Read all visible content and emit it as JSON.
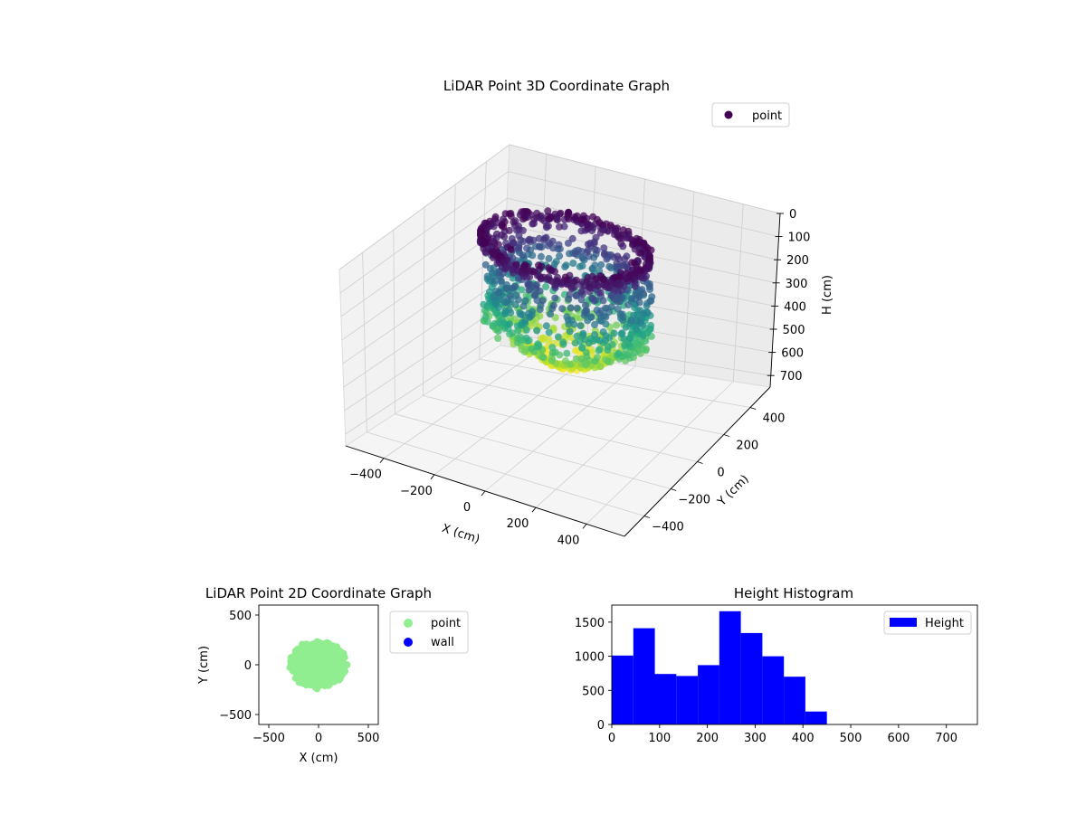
{
  "chart_data": [
    {
      "type": "scatter3d",
      "title": "LiDAR Point 3D Coordinate Graph",
      "xlabel": "X (cm)",
      "ylabel": "Y (cm)",
      "zlabel": "H (cm)",
      "xticks": [
        "−400",
        "−200",
        "0",
        "200",
        "400"
      ],
      "yticks": [
        "−400",
        "−200",
        "0",
        "200",
        "400"
      ],
      "zticks": [
        "0",
        "100",
        "200",
        "300",
        "400",
        "500",
        "600",
        "700"
      ],
      "xlim": [
        -550,
        550
      ],
      "ylim": [
        -550,
        550
      ],
      "zlim": [
        0,
        750
      ],
      "zinverted": true,
      "grid": true,
      "legend": {
        "entries": [
          "point"
        ],
        "placement": "top-right"
      },
      "colormap": "viridis",
      "point_color": "#440154",
      "summary": {
        "x_range": [
          -330,
          320
        ],
        "y_range": [
          -260,
          270
        ],
        "h_range": [
          0,
          450
        ]
      }
    },
    {
      "type": "scatter",
      "title": "LiDAR Point 2D Coordinate Graph",
      "xlabel": "X (cm)",
      "ylabel": "Y (cm)",
      "xticks": [
        "−500",
        "0",
        "500"
      ],
      "yticks": [
        "−500",
        "0",
        "500"
      ],
      "xlim": [
        -600,
        600
      ],
      "ylim": [
        -600,
        600
      ],
      "legend": {
        "entries": [
          "point",
          "wall"
        ],
        "placement": "outside-right"
      },
      "series": [
        {
          "name": "point",
          "color": "#90ee90",
          "cluster": {
            "center": [
              0,
              0
            ],
            "radius_x": 290,
            "radius_y": 240
          },
          "x_range": [
            -330,
            320
          ],
          "y_range": [
            -260,
            270
          ]
        },
        {
          "name": "wall",
          "color": "#0000ff",
          "values": []
        }
      ]
    },
    {
      "type": "bar",
      "title": "Height Histogram",
      "xticks": [
        "0",
        "100",
        "200",
        "300",
        "400",
        "500",
        "600",
        "700"
      ],
      "yticks": [
        "0",
        "500",
        "1000",
        "1500"
      ],
      "xlim": [
        0,
        765
      ],
      "ylim": [
        0,
        1750
      ],
      "bin_width": 45,
      "bins": [
        0,
        45,
        90,
        135,
        180,
        225,
        270,
        315,
        360,
        405
      ],
      "values": [
        1010,
        1410,
        740,
        710,
        870,
        1660,
        1340,
        1000,
        700,
        190
      ],
      "color": "#0000ff",
      "legend": {
        "entries": [
          "Height"
        ],
        "placement": "upper-right"
      }
    }
  ]
}
